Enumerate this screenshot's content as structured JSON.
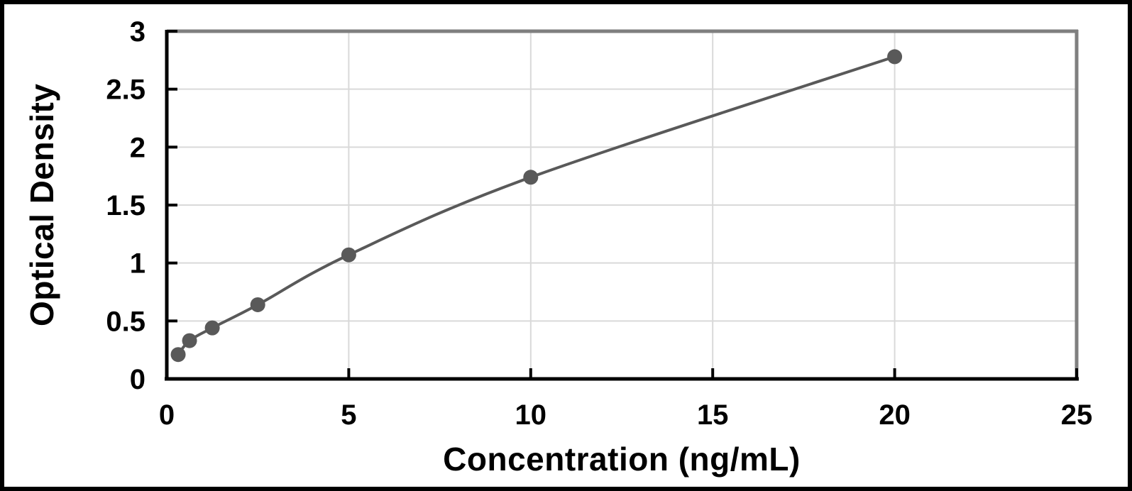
{
  "chart_data": {
    "type": "scatter",
    "title": "",
    "xlabel": "Concentration (ng/mL)",
    "ylabel": "Optical Density",
    "x": [
      0.313,
      0.625,
      1.25,
      2.5,
      5,
      10,
      20
    ],
    "y": [
      0.21,
      0.33,
      0.44,
      0.64,
      1.07,
      1.74,
      2.78
    ],
    "xlim": [
      0,
      25
    ],
    "ylim": [
      0,
      3
    ],
    "x_ticks": [
      0,
      5,
      10,
      15,
      20,
      25
    ],
    "y_ticks": [
      0,
      0.5,
      1,
      1.5,
      2,
      2.5,
      3
    ],
    "grid": true,
    "legend": "none",
    "line_style": "smooth",
    "colors": {
      "curve": "#595959",
      "marker": "#595959",
      "gridline": "#d9d9d9",
      "axis": "#000000",
      "plot_border": "#7f7f7f",
      "tick_label": "#000000",
      "frame": "#000000",
      "background": "#ffffff"
    }
  }
}
